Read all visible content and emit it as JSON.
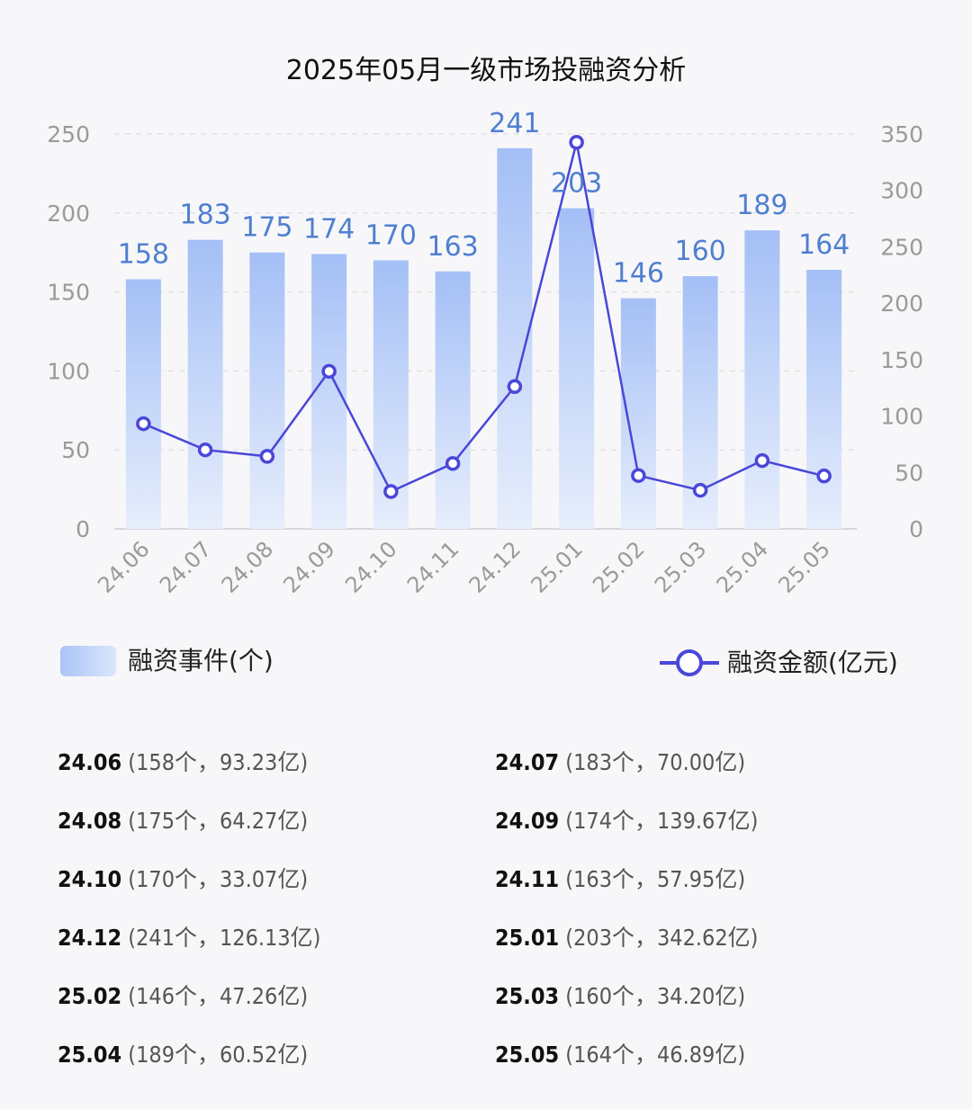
{
  "chart_data": {
    "type": "bar+line",
    "title": "2025年05月一级市场投融资分析",
    "categories": [
      "24.06",
      "24.07",
      "24.08",
      "24.09",
      "24.10",
      "24.11",
      "24.12",
      "25.01",
      "25.02",
      "25.03",
      "25.04",
      "25.05"
    ],
    "series": [
      {
        "name": "融资事件(个)",
        "type": "bar",
        "axis": "left",
        "values": [
          158,
          183,
          175,
          174,
          170,
          163,
          241,
          203,
          146,
          160,
          189,
          164
        ],
        "color": "#a9c3f7"
      },
      {
        "name": "融资金额(亿元)",
        "type": "line",
        "axis": "right",
        "values": [
          93.23,
          70.0,
          64.27,
          139.67,
          33.07,
          57.95,
          126.13,
          342.62,
          47.26,
          34.2,
          60.52,
          46.89
        ],
        "color": "#4a47d8"
      }
    ],
    "left_axis": {
      "ylim": [
        0,
        250
      ],
      "ticks": [
        "0",
        "50",
        "100",
        "150",
        "200",
        "250"
      ]
    },
    "right_axis": {
      "ylim": [
        0,
        350
      ],
      "ticks": [
        "0",
        "50",
        "100",
        "150",
        "200",
        "250",
        "300",
        "350"
      ]
    },
    "grid": true,
    "legend_position": "bottom"
  },
  "legend": {
    "bar_label": "融资事件(个)",
    "line_label": "融资金额(亿元)"
  },
  "summary": [
    {
      "month": "24.06",
      "detail": "(158个，93.23亿)"
    },
    {
      "month": "24.07",
      "detail": "(183个，70.00亿)"
    },
    {
      "month": "24.08",
      "detail": "(175个，64.27亿)"
    },
    {
      "month": "24.09",
      "detail": "(174个，139.67亿)"
    },
    {
      "month": "24.10",
      "detail": "(170个，33.07亿)"
    },
    {
      "month": "24.11",
      "detail": "(163个，57.95亿)"
    },
    {
      "month": "24.12",
      "detail": "(241个，126.13亿)"
    },
    {
      "month": "25.01",
      "detail": "(203个，342.62亿)"
    },
    {
      "month": "25.02",
      "detail": "(146个，47.26亿)"
    },
    {
      "month": "25.03",
      "detail": "(160个，34.20亿)"
    },
    {
      "month": "25.04",
      "detail": "(189个，60.52亿)"
    },
    {
      "month": "25.05",
      "detail": "(164个，46.89亿)"
    }
  ]
}
